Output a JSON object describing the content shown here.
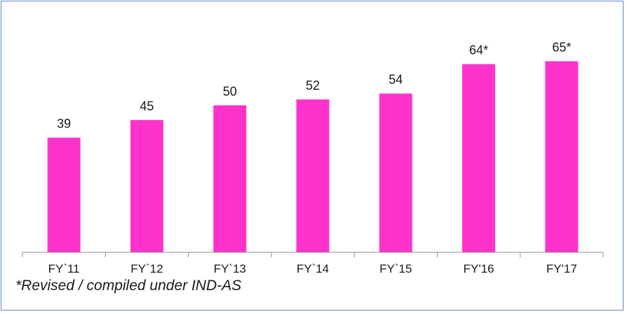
{
  "chart_data": {
    "type": "bar",
    "categories": [
      "FY`11",
      "FY`12",
      "FY`13",
      "FY`14",
      "FY`15",
      "FY'16",
      "FY'17"
    ],
    "values": [
      39,
      45,
      50,
      52,
      54,
      64,
      65
    ],
    "value_labels": [
      "39",
      "45",
      "50",
      "52",
      "54",
      "64*",
      "65*"
    ],
    "ylim": [
      0,
      72
    ],
    "grid": false,
    "legend": "none",
    "bar_color": "#ff33cc",
    "axis_color": "#8c8c8c"
  },
  "footnote": "*Revised / compiled under IND-AS",
  "frame_color": "#5b8ac6"
}
